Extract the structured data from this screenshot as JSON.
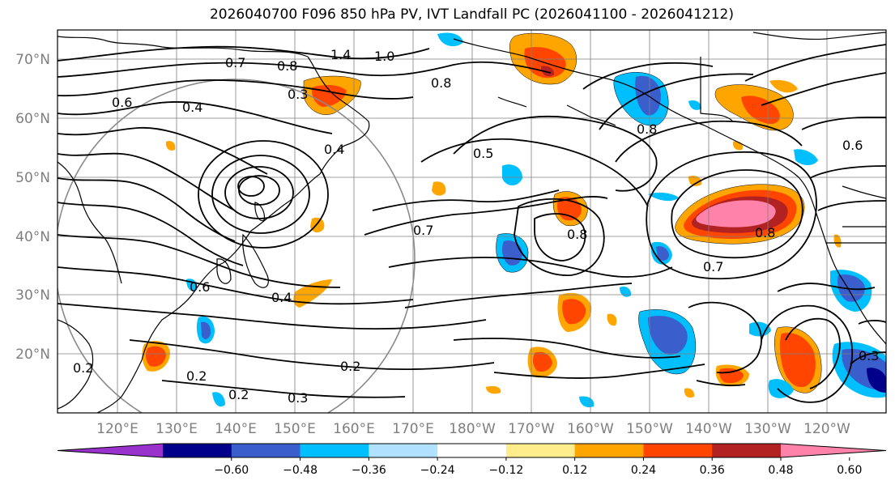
{
  "title": "2026040700 F096 850 hPa PV, IVT Landfall PC (2026041100 - 2026041212)",
  "lat_labels": [
    "70°N",
    "60°N",
    "50°N",
    "40°N",
    "30°N",
    "20°N"
  ],
  "lon_labels": [
    "120°E",
    "130°E",
    "140°E",
    "150°E",
    "160°E",
    "170°E",
    "180°W",
    "170°W",
    "160°W",
    "150°W",
    "140°W",
    "130°W",
    "120°W"
  ],
  "colorbar": {
    "ticks": [
      "−0.60",
      "−0.48",
      "−0.36",
      "−0.24",
      "−0.12",
      "0.12",
      "0.24",
      "0.36",
      "0.48",
      "0.60"
    ],
    "colors": [
      "#9932cc",
      "#00008b",
      "#3a5fcd",
      "#00bfff",
      "#b0e2ff",
      "#ffffff",
      "#ffec8b",
      "#ffa500",
      "#ff4500",
      "#b22222",
      "#ff82ab"
    ]
  },
  "contour_labels": [
    "1.4",
    "1.0",
    "0.7",
    "0.8",
    "0.3",
    "0.6",
    "0.4",
    "0.8",
    "0.5",
    "0.7",
    "0.8",
    "0.7",
    "0.8",
    "0.4",
    "0.2",
    "0.2",
    "0.3",
    "0.2",
    "0.4",
    "0.6",
    "0.8",
    "0.2",
    "0.3",
    "0.6"
  ],
  "colors": {
    "land": "#000000",
    "grid": "#7f7f7f",
    "contour": "#000000"
  }
}
